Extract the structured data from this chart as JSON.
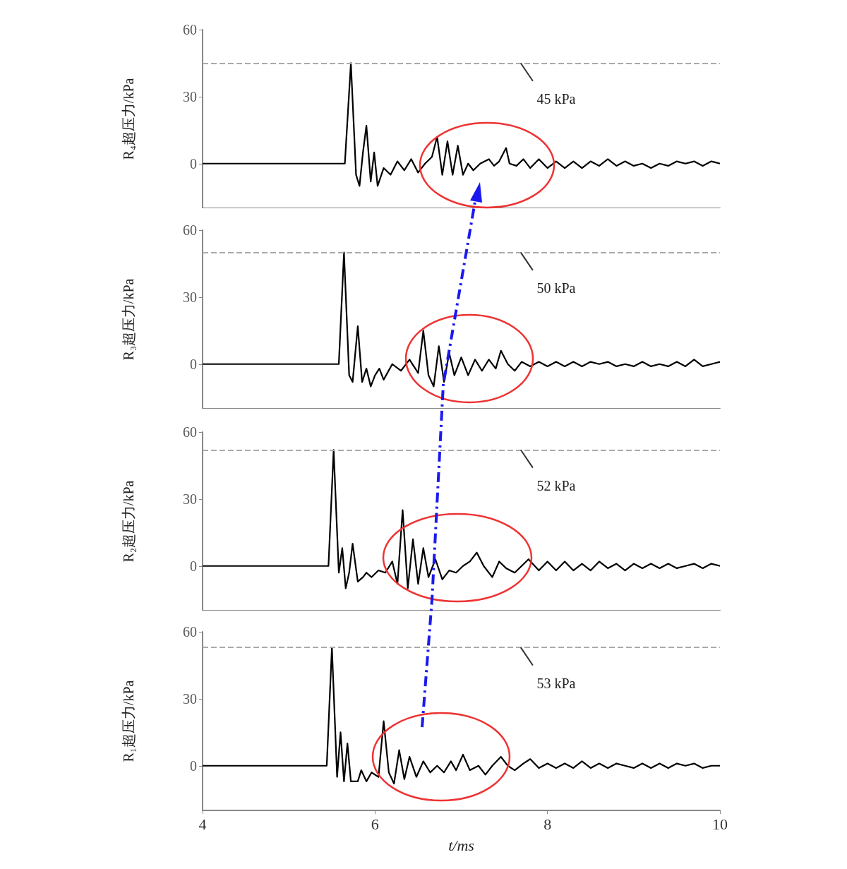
{
  "chart_data": [
    {
      "type": "line",
      "ylabel": "R₄超压力/kPa",
      "xlim": [
        4,
        10
      ],
      "xticks": [
        4,
        6,
        8,
        10
      ],
      "ylim": [
        -20,
        60
      ],
      "yticks": [
        0,
        30,
        60
      ],
      "tick_labels": "y",
      "grid": false,
      "marker": "none",
      "color": "#000000",
      "x": [
        4,
        5.65,
        5.72,
        5.78,
        5.82,
        5.86,
        5.9,
        5.95,
        5.99,
        6.03,
        6.1,
        6.18,
        6.26,
        6.34,
        6.42,
        6.5,
        6.58,
        6.66,
        6.72,
        6.78,
        6.84,
        6.9,
        6.96,
        7.02,
        7.08,
        7.14,
        7.22,
        7.32,
        7.38,
        7.44,
        7.52,
        7.56,
        7.64,
        7.72,
        7.8,
        7.9,
        8.0,
        8.1,
        8.2,
        8.3,
        8.4,
        8.5,
        8.6,
        8.7,
        8.8,
        8.9,
        9.0,
        9.1,
        9.2,
        9.3,
        9.4,
        9.5,
        9.6,
        9.7,
        9.8,
        9.9,
        10
      ],
      "values": [
        0,
        0,
        45,
        -5,
        -10,
        5,
        17,
        -8,
        5,
        -10,
        -2,
        -5,
        1,
        -3,
        2,
        -4,
        0,
        3,
        12,
        -5,
        10,
        -5,
        8,
        -5,
        0,
        -3,
        0,
        2,
        -1,
        1,
        7,
        0,
        -1,
        2,
        -2,
        2,
        -2,
        1,
        -2,
        1,
        -2,
        1,
        -1,
        2,
        -1,
        1,
        -1,
        0,
        -2,
        0,
        -1,
        1,
        0,
        1,
        -1,
        1,
        0
      ],
      "ref_lines": [
        {
          "axis": "y",
          "value": 45,
          "label": "45 kPa",
          "color": "#aaaaaa",
          "line_style": "dashed"
        }
      ]
    },
    {
      "type": "line",
      "ylabel": "R₃超压力/kPa",
      "xlim": [
        4,
        10
      ],
      "xticks": [
        4,
        6,
        8,
        10
      ],
      "ylim": [
        -20,
        60
      ],
      "yticks": [
        0,
        30,
        60
      ],
      "tick_labels": "y",
      "grid": false,
      "marker": "none",
      "color": "#000000",
      "x": [
        4,
        5.58,
        5.64,
        5.7,
        5.74,
        5.8,
        5.85,
        5.9,
        5.95,
        6.0,
        6.05,
        6.1,
        6.2,
        6.3,
        6.4,
        6.5,
        6.56,
        6.62,
        6.68,
        6.74,
        6.8,
        6.86,
        6.92,
        7.0,
        7.08,
        7.16,
        7.24,
        7.32,
        7.4,
        7.46,
        7.54,
        7.62,
        7.7,
        7.8,
        7.9,
        8.0,
        8.1,
        8.2,
        8.3,
        8.4,
        8.5,
        8.6,
        8.7,
        8.8,
        8.9,
        9.0,
        9.1,
        9.2,
        9.3,
        9.4,
        9.5,
        9.6,
        9.7,
        9.8,
        9.9,
        10
      ],
      "values": [
        0,
        0,
        50,
        -5,
        -8,
        17,
        -8,
        -2,
        -10,
        -5,
        -2,
        -7,
        0,
        -3,
        2,
        -4,
        15,
        -5,
        -10,
        8,
        -8,
        5,
        -5,
        3,
        -5,
        2,
        -3,
        2,
        -2,
        6,
        0,
        -3,
        1,
        -1,
        1,
        -1,
        1,
        -1,
        1,
        -1,
        1,
        0,
        1,
        -1,
        0,
        -1,
        1,
        -1,
        0,
        -1,
        1,
        -1,
        2,
        -1,
        0,
        1
      ],
      "ref_lines": [
        {
          "axis": "y",
          "value": 50,
          "label": "50 kPa",
          "color": "#aaaaaa",
          "line_style": "dashed"
        }
      ]
    },
    {
      "type": "line",
      "ylabel": "R₂超压力/kPa",
      "xlim": [
        4,
        10
      ],
      "xticks": [
        4,
        6,
        8,
        10
      ],
      "ylim": [
        -20,
        60
      ],
      "yticks": [
        0,
        30,
        60
      ],
      "tick_labels": "y",
      "grid": false,
      "marker": "none",
      "color": "#000000",
      "x": [
        4,
        5.46,
        5.52,
        5.58,
        5.62,
        5.66,
        5.7,
        5.74,
        5.8,
        5.86,
        5.9,
        5.96,
        6.04,
        6.12,
        6.2,
        6.26,
        6.32,
        6.38,
        6.44,
        6.5,
        6.56,
        6.62,
        6.7,
        6.78,
        6.86,
        6.94,
        7.02,
        7.1,
        7.18,
        7.26,
        7.36,
        7.44,
        7.52,
        7.62,
        7.7,
        7.78,
        7.9,
        8.0,
        8.1,
        8.2,
        8.3,
        8.4,
        8.5,
        8.6,
        8.7,
        8.8,
        8.9,
        9.0,
        9.1,
        9.2,
        9.3,
        9.4,
        9.5,
        9.6,
        9.7,
        9.8,
        9.9,
        10
      ],
      "values": [
        0,
        0,
        52,
        -3,
        8,
        -10,
        -3,
        10,
        -7,
        -5,
        -3,
        -5,
        -2,
        -3,
        2,
        -8,
        25,
        -10,
        12,
        -8,
        8,
        -5,
        3,
        -6,
        -2,
        -3,
        0,
        2,
        6,
        0,
        -5,
        2,
        -1,
        -3,
        0,
        3,
        -2,
        2,
        -2,
        2,
        -2,
        1,
        -2,
        2,
        -1,
        1,
        -2,
        1,
        -1,
        1,
        -1,
        1,
        -1,
        0,
        1,
        -1,
        1,
        0
      ],
      "ref_lines": [
        {
          "axis": "y",
          "value": 52,
          "label": "52 kPa",
          "color": "#aaaaaa",
          "line_style": "dashed"
        }
      ]
    },
    {
      "type": "line",
      "ylabel": "R₁超压力/kPa",
      "xlabel": "t/ms",
      "xlim": [
        4,
        10
      ],
      "xticks": [
        4,
        6,
        8,
        10
      ],
      "ylim": [
        -20,
        60
      ],
      "yticks": [
        0,
        30,
        60
      ],
      "grid": false,
      "marker": "none",
      "color": "#000000",
      "x": [
        4,
        5.44,
        5.5,
        5.56,
        5.6,
        5.64,
        5.68,
        5.72,
        5.8,
        5.84,
        5.9,
        5.96,
        6.04,
        6.1,
        6.16,
        6.22,
        6.28,
        6.34,
        6.4,
        6.48,
        6.56,
        6.64,
        6.72,
        6.8,
        6.88,
        6.94,
        7.02,
        7.1,
        7.2,
        7.28,
        7.36,
        7.46,
        7.54,
        7.62,
        7.72,
        7.8,
        7.9,
        8.0,
        8.1,
        8.2,
        8.3,
        8.4,
        8.5,
        8.6,
        8.7,
        8.8,
        8.9,
        9.0,
        9.1,
        9.2,
        9.3,
        9.4,
        9.5,
        9.6,
        9.7,
        9.8,
        9.9,
        10
      ],
      "values": [
        0,
        0,
        53,
        -5,
        15,
        -7,
        10,
        -7,
        -7,
        -2,
        -7,
        -3,
        -5,
        20,
        -3,
        -8,
        7,
        -6,
        4,
        -5,
        2,
        -3,
        0,
        -3,
        2,
        -2,
        5,
        -2,
        0,
        -4,
        0,
        4,
        0,
        -2,
        1,
        3,
        -1,
        1,
        -1,
        1,
        -1,
        2,
        -1,
        1,
        -1,
        1,
        0,
        -1,
        1,
        -1,
        1,
        -1,
        1,
        0,
        1,
        -1,
        0,
        0
      ],
      "ref_lines": [
        {
          "axis": "y",
          "value": 53,
          "label": "53 kPa",
          "color": "#aaaaaa",
          "line_style": "dashed"
        }
      ]
    }
  ]
}
